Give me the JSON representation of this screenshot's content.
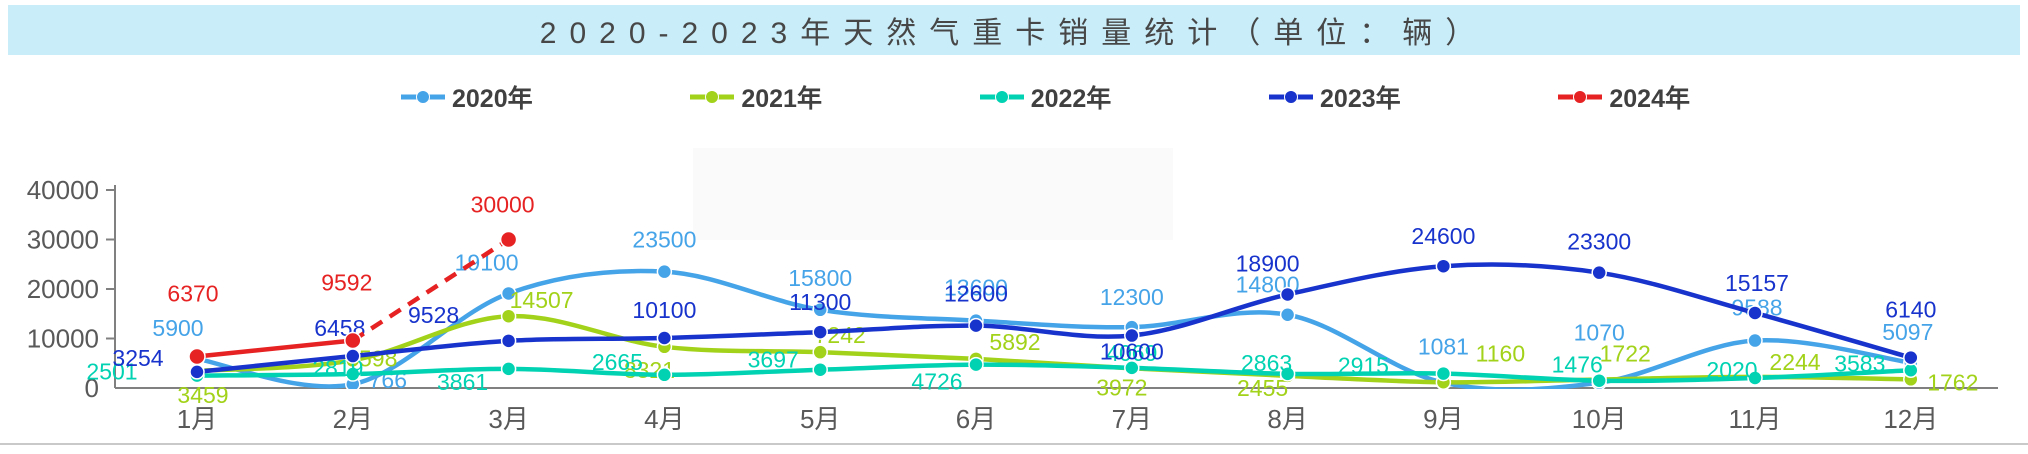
{
  "banner": {
    "title": "2020-2023年天然气重卡销量统计（单位：辆）",
    "bg_color": "#c9edf9",
    "text_color": "#474747"
  },
  "chart_data": {
    "type": "line",
    "title": "2020-2023年天然气重卡销量统计（单位：辆）",
    "categories": [
      "1月",
      "2月",
      "3月",
      "4月",
      "5月",
      "6月",
      "7月",
      "8月",
      "9月",
      "10月",
      "11月",
      "12月"
    ],
    "xlabel": "",
    "ylabel": "",
    "ylim": [
      0,
      40000
    ],
    "y_ticks": [
      0,
      10000,
      20000,
      30000,
      40000
    ],
    "grid": false,
    "legend_position": "top",
    "axis_color": "#808080",
    "tick_label_color": "#595959",
    "series": [
      {
        "name": "2020年",
        "color": "#45a3e8",
        "values": [
          5900,
          766,
          19100,
          23500,
          15800,
          13600,
          12300,
          14800,
          1081,
          1070,
          9588,
          5097
        ],
        "label_offsets": [
          [
            -19,
            -23
          ],
          [
            35,
            4
          ],
          [
            -22,
            -23
          ],
          [
            0,
            -24
          ],
          [
            0,
            -24
          ],
          [
            0,
            -25
          ],
          [
            0,
            -22
          ],
          [
            -20,
            -22
          ],
          [
            0,
            -28
          ],
          [
            0,
            -42
          ],
          [
            2,
            -25
          ],
          [
            -3,
            -23
          ]
        ]
      },
      {
        "name": "2021年",
        "color": "#a2d219",
        "values": [
          3459,
          5598,
          14507,
          8321,
          7242,
          5892,
          3972,
          2455,
          1160,
          1722,
          2244,
          1762
        ],
        "label_offsets": [
          [
            6,
            32
          ],
          [
            19,
            6
          ],
          [
            33,
            -8
          ],
          [
            -15,
            31
          ],
          [
            20,
            -9
          ],
          [
            39,
            -9
          ],
          [
            -10,
            27
          ],
          [
            -25,
            20
          ],
          [
            57,
            -21
          ],
          [
            26,
            -18
          ],
          [
            40,
            -7
          ],
          [
            42,
            11
          ]
        ]
      },
      {
        "name": "2022年",
        "color": "#00d2b2",
        "values": [
          2501,
          2819,
          3861,
          2665,
          3697,
          4726,
          4069,
          2863,
          2915,
          1476,
          2020,
          3583
        ],
        "label_offsets": [
          [
            -85,
            4
          ],
          [
            -15,
            2
          ],
          [
            -46,
            21
          ],
          [
            -47,
            -5
          ],
          [
            -47,
            -2
          ],
          [
            -39,
            25
          ],
          [
            0,
            -7
          ],
          [
            -21,
            -3
          ],
          [
            -80,
            0
          ],
          [
            -22,
            -8
          ],
          [
            -23,
            0
          ],
          [
            -51,
            1
          ]
        ]
      },
      {
        "name": "2023年",
        "color": "#1733cc",
        "values": [
          3254,
          6458,
          9528,
          10100,
          11300,
          12600,
          10600,
          18900,
          24600,
          23300,
          15157,
          6140
        ],
        "label_offsets": [
          [
            -59,
            -6
          ],
          [
            -13,
            -20
          ],
          [
            -75,
            -18
          ],
          [
            0,
            -20
          ],
          [
            0,
            -22
          ],
          [
            0,
            -24
          ],
          [
            0,
            24
          ],
          [
            -20,
            -23
          ],
          [
            0,
            -22
          ],
          [
            0,
            -23
          ],
          [
            2,
            -22
          ],
          [
            0,
            -40
          ]
        ]
      },
      {
        "name": "2024年",
        "color": "#e62222",
        "values": [
          6370,
          9592,
          30000
        ],
        "dashed_from_index": 1,
        "label_offsets": [
          [
            -4,
            -55
          ],
          [
            -6,
            -50
          ],
          [
            -6,
            -27
          ]
        ]
      }
    ]
  }
}
